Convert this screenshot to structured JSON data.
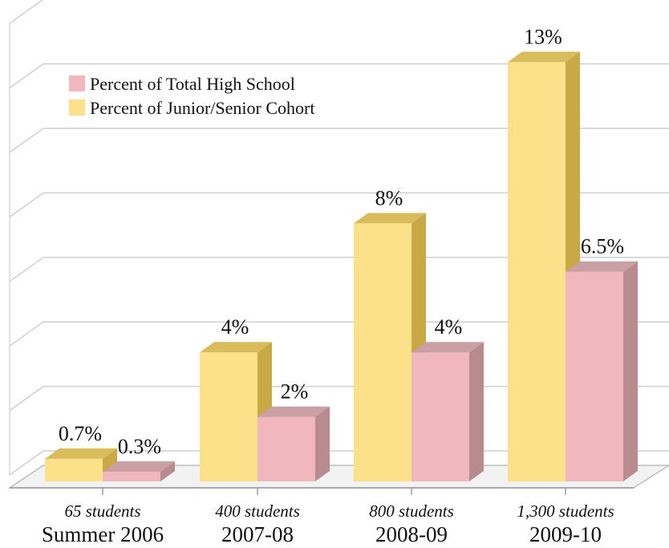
{
  "chart_data": {
    "type": "bar",
    "categories": [
      "Summer 2006",
      "2007-08",
      "2008-09",
      "2009-10"
    ],
    "subcategories": [
      "65 students",
      "400 students",
      "800 students",
      "1,300 students"
    ],
    "series": [
      {
        "name": "Percent of Junior/Senior Cohort",
        "values": [
          0.7,
          4,
          8,
          13
        ],
        "labels": [
          "0.7%",
          "4%",
          "8%",
          "13%"
        ],
        "color": "#fde08a"
      },
      {
        "name": "Percent of Total High School",
        "values": [
          0.3,
          2,
          4,
          6.5
        ],
        "labels": [
          "0.3%",
          "2%",
          "4%",
          "6.5%"
        ],
        "color": "#f0b8bd"
      }
    ],
    "legend": {
      "placement": "top-left",
      "entries": [
        "Percent of Total High School",
        "Percent of Junior/Senior Cohort"
      ]
    },
    "ylim": [
      0,
      14
    ],
    "grid": true,
    "three_d": true
  }
}
